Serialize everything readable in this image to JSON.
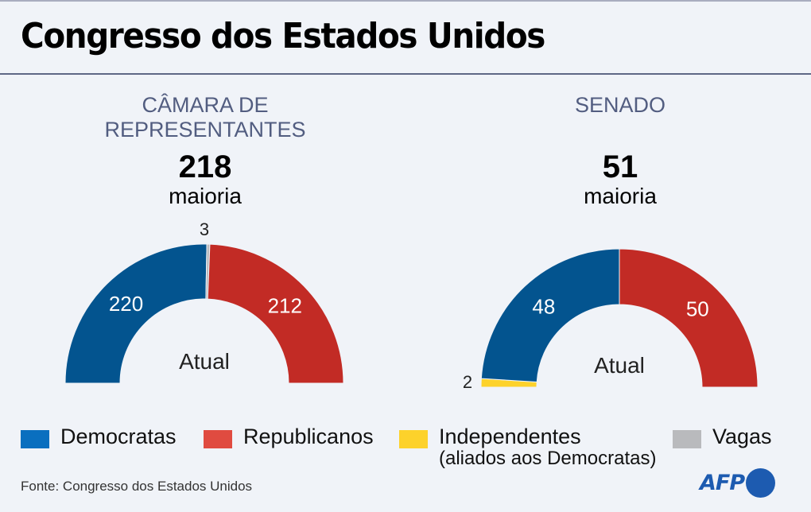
{
  "title": "Congresso dos Estados Unidos",
  "colors": {
    "democrats": "#03548f",
    "republicans": "#c22b25",
    "independents": "#fdd22b",
    "vacancies": "#b9babd",
    "legend_democrats": "#0a6fbf",
    "legend_republicans": "#e04b40",
    "legend_independents": "#fdd22b",
    "legend_vacancies": "#b9babd",
    "brand": "#1d5bb0"
  },
  "chart_data": [
    {
      "type": "pie",
      "subtype": "semicircle-donut",
      "title": "CÂMARA DE REPRESENTANTES",
      "title_lines": [
        "CÂMARA DE",
        "REPRESENTANTES"
      ],
      "majority": 218,
      "majority_label": "maioria",
      "center_label": "Atual",
      "total": 435,
      "segments": [
        {
          "name": "Democratas",
          "value": 220,
          "label": "220",
          "color_key": "democrats"
        },
        {
          "name": "Vagas",
          "value": 3,
          "label": "3",
          "color_key": "vacancies"
        },
        {
          "name": "Republicanos",
          "value": 212,
          "label": "212",
          "color_key": "republicans"
        }
      ]
    },
    {
      "type": "pie",
      "subtype": "semicircle-donut",
      "title": "SENADO",
      "title_lines": [
        "SENADO"
      ],
      "majority": 51,
      "majority_label": "maioria",
      "center_label": "Atual",
      "total": 100,
      "segments": [
        {
          "name": "Independentes",
          "value": 2,
          "label": "2",
          "color_key": "independents"
        },
        {
          "name": "Democratas",
          "value": 48,
          "label": "48",
          "color_key": "democrats"
        },
        {
          "name": "Republicanos",
          "value": 50,
          "label": "50",
          "color_key": "republicans"
        }
      ]
    }
  ],
  "legend": [
    {
      "label": "Democratas",
      "sub": "",
      "color_key": "legend_democrats"
    },
    {
      "label": "Republicanos",
      "sub": "",
      "color_key": "legend_republicans"
    },
    {
      "label": "Independentes",
      "sub": "(aliados aos Democratas)",
      "color_key": "legend_independents"
    },
    {
      "label": "Vagas",
      "sub": "",
      "color_key": "legend_vacancies"
    }
  ],
  "source": "Fonte: Congresso dos Estados Unidos",
  "logo": "AFP"
}
